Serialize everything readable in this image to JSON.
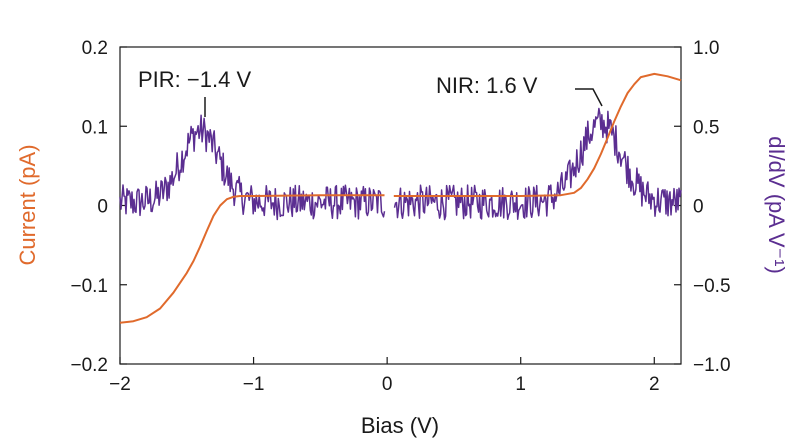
{
  "chart_data": {
    "type": "line",
    "xlabel": "Bias (V)",
    "ylabel_left": "Current (pA)",
    "ylabel_right": "dI/dV (pA V⁻¹)",
    "xlim": [
      -2,
      2.2
    ],
    "ylim_left": [
      -0.2,
      0.2
    ],
    "ylim_right": [
      -1.0,
      1.0
    ],
    "x_ticks": [
      -2,
      -1,
      0,
      1,
      2
    ],
    "x_tick_labels": [
      "−2",
      "−1",
      "0",
      "1",
      "2"
    ],
    "y_left_ticks": [
      -0.2,
      -0.1,
      0,
      0.1,
      0.2
    ],
    "y_left_tick_labels": [
      "−0.2",
      "−0.1",
      "0",
      "0.1",
      "0.2"
    ],
    "y_right_ticks": [
      -1.0,
      -0.5,
      0,
      0.5,
      1.0
    ],
    "y_right_tick_labels": [
      "−1.0",
      "−0.5",
      "0",
      "0.5",
      "1.0"
    ],
    "grid": false,
    "series": [
      {
        "axis": "left",
        "color": "#e06a2c",
        "x": [
          -2.0,
          -1.9,
          -1.8,
          -1.7,
          -1.6,
          -1.5,
          -1.45,
          -1.4,
          -1.35,
          -1.3,
          -1.25,
          -1.2,
          -1.15,
          -1.1,
          -1.0,
          -0.5,
          -0.02,
          0.05,
          0.5,
          1.0,
          1.3,
          1.4,
          1.45,
          1.5,
          1.55,
          1.6,
          1.65,
          1.7,
          1.75,
          1.8,
          1.85,
          1.9,
          2.0,
          2.1,
          2.2
        ],
        "y": [
          -0.148,
          -0.146,
          -0.141,
          -0.13,
          -0.11,
          -0.085,
          -0.07,
          -0.052,
          -0.032,
          -0.013,
          0.0,
          0.008,
          0.011,
          0.012,
          0.012,
          0.013,
          0.013,
          0.012,
          0.012,
          0.012,
          0.013,
          0.016,
          0.022,
          0.033,
          0.047,
          0.065,
          0.085,
          0.106,
          0.125,
          0.142,
          0.153,
          0.162,
          0.166,
          0.163,
          0.158
        ]
      },
      {
        "axis": "right",
        "color": "#5b2e91",
        "peaks": [
          {
            "center": -1.4,
            "amplitude": 0.45,
            "width": 0.2
          },
          {
            "center": 1.6,
            "amplitude": 0.5,
            "width": 0.22
          }
        ],
        "baseline": 0.02,
        "noise_amplitude": 0.11,
        "x_range": [
          -2,
          2.2
        ],
        "gap": [
          -0.02,
          0.05
        ]
      }
    ],
    "annotations": [
      {
        "text": "PIR: −1.4 V",
        "x": -1.4
      },
      {
        "text": "NIR: 1.6 V",
        "x": 1.6
      }
    ]
  }
}
